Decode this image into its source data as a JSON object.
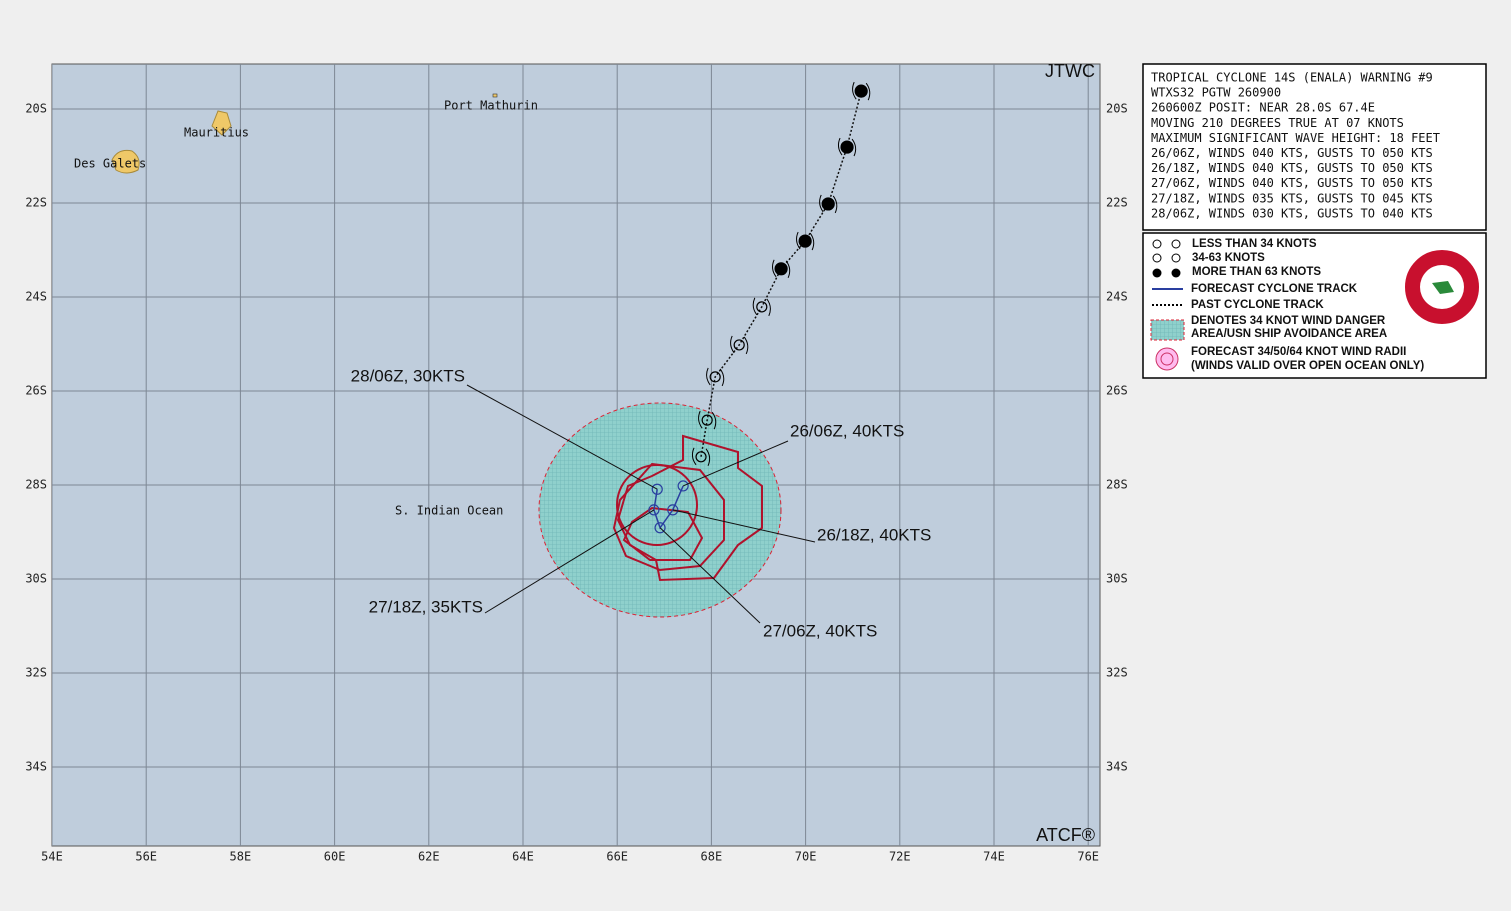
{
  "map": {
    "corner_top": "JTWC",
    "corner_bottom": "ATCF®",
    "region_label": "S. Indian Ocean",
    "places": [
      "Port Mathurin",
      "Mauritius",
      "Des Galets"
    ],
    "lon_ticks": [
      {
        "value": 54,
        "label": "54E"
      },
      {
        "value": 56,
        "label": "56E"
      },
      {
        "value": 58,
        "label": "58E"
      },
      {
        "value": 60,
        "label": "60E"
      },
      {
        "value": 62,
        "label": "62E"
      },
      {
        "value": 64,
        "label": "64E"
      },
      {
        "value": 66,
        "label": "66E"
      },
      {
        "value": 68,
        "label": "68E"
      },
      {
        "value": 70,
        "label": "70E"
      },
      {
        "value": 72,
        "label": "72E"
      },
      {
        "value": 74,
        "label": "74E"
      },
      {
        "value": 76,
        "label": "76E"
      }
    ],
    "lat_ticks": [
      {
        "value": 20,
        "label": "20S"
      },
      {
        "value": 22,
        "label": "22S"
      },
      {
        "value": 24,
        "label": "24S"
      },
      {
        "value": 26,
        "label": "26S"
      },
      {
        "value": 28,
        "label": "28S"
      },
      {
        "value": 30,
        "label": "30S"
      },
      {
        "value": 32,
        "label": "32S"
      },
      {
        "value": 34,
        "label": "34S"
      }
    ],
    "past_track": [
      {
        "lat": 19.62,
        "lon": 71.18,
        "filled": true
      },
      {
        "lat": 20.81,
        "lon": 70.88,
        "filled": true
      },
      {
        "lat": 22.02,
        "lon": 70.48,
        "filled": true
      },
      {
        "lat": 22.81,
        "lon": 69.99,
        "filled": true
      },
      {
        "lat": 23.4,
        "lon": 69.48,
        "filled": true
      },
      {
        "lat": 24.21,
        "lon": 69.07,
        "filled": false
      },
      {
        "lat": 25.02,
        "lon": 68.59,
        "filled": false
      },
      {
        "lat": 25.7,
        "lon": 68.08,
        "filled": false
      },
      {
        "lat": 26.62,
        "lon": 67.91,
        "filled": false
      },
      {
        "lat": 27.4,
        "lon": 67.78,
        "filled": false
      }
    ],
    "forecast": [
      {
        "label": "26/06Z, 40KTS",
        "lat": 28.02,
        "lon": 67.4
      },
      {
        "label": "26/18Z, 40KTS",
        "lat": 28.53,
        "lon": 67.18
      },
      {
        "label": "27/06Z, 40KTS",
        "lat": 28.91,
        "lon": 66.91
      },
      {
        "label": "27/18Z, 35KTS",
        "lat": 28.53,
        "lon": 66.78
      },
      {
        "label": "28/06Z, 30KTS",
        "lat": 28.09,
        "lon": 66.85
      }
    ]
  },
  "warning": {
    "lines": [
      "TROPICAL CYCLONE 14S (ENALA) WARNING #9",
      "WTXS32 PGTW 260900",
      "260600Z POSIT: NEAR 28.0S 67.4E",
      "MOVING 210 DEGREES TRUE AT 07 KNOTS",
      "MAXIMUM SIGNIFICANT WAVE HEIGHT: 18 FEET",
      "26/06Z, WINDS 040 KTS, GUSTS TO 050 KTS",
      "26/18Z, WINDS 040 KTS, GUSTS TO 050 KTS",
      "27/06Z, WINDS 040 KTS, GUSTS TO 050 KTS",
      "27/18Z, WINDS 035 KTS, GUSTS TO 045 KTS",
      "28/06Z, WINDS 030 KTS, GUSTS TO 040 KTS"
    ]
  },
  "legend": {
    "entries": [
      "LESS THAN 34 KNOTS",
      "34-63 KNOTS",
      "MORE THAN 63 KNOTS",
      "FORECAST CYCLONE TRACK",
      "PAST CYCLONE TRACK",
      "DENOTES 34 KNOT WIND DANGER",
      "AREA/USN SHIP AVOIDANCE AREA",
      "FORECAST 34/50/64 KNOT WIND RADII",
      "(WINDS VALID OVER OPEN OCEAN ONLY)"
    ]
  }
}
